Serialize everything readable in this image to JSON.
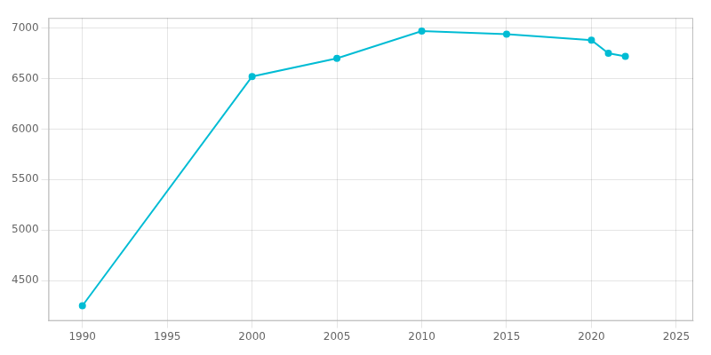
{
  "chart_data": {
    "type": "line",
    "x": [
      1990,
      2000,
      2005,
      2010,
      2015,
      2020,
      2021,
      2022
    ],
    "values": [
      4250,
      6520,
      6700,
      6970,
      6940,
      6880,
      6750,
      6720
    ],
    "color": "#00bcd4",
    "marker": "circle",
    "xlim": [
      1988,
      2026
    ],
    "xticks": [
      1990,
      1995,
      2000,
      2005,
      2010,
      2015,
      2020,
      2025
    ],
    "ylim": [
      4100,
      7100
    ],
    "yticks": [
      4500,
      5000,
      5500,
      6000,
      6500,
      7000
    ],
    "grid": true
  }
}
